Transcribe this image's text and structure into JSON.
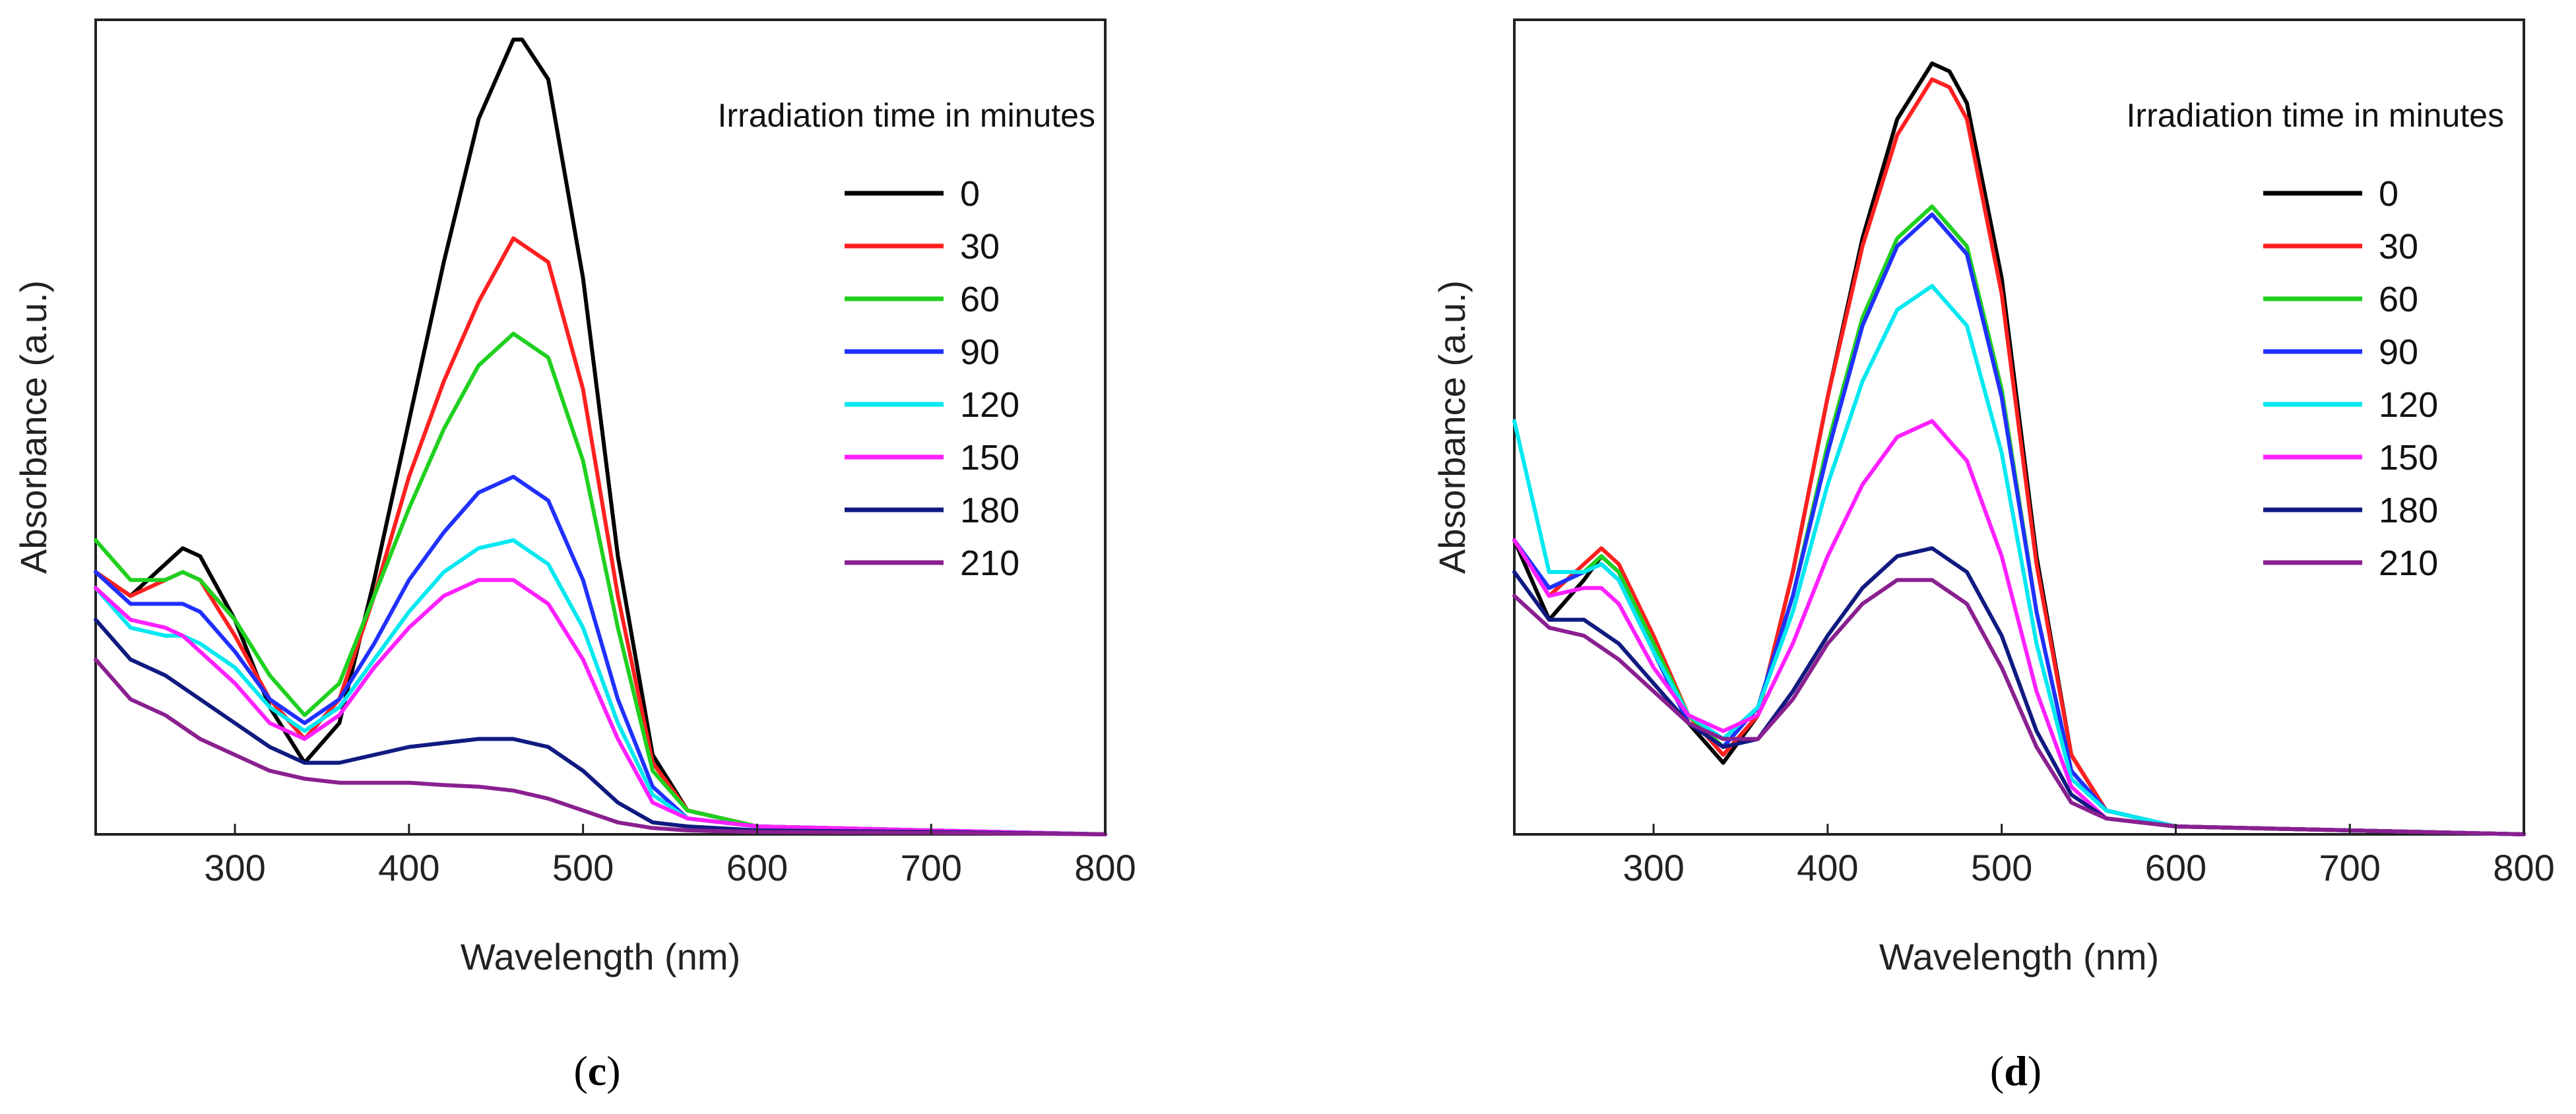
{
  "chart_data": [
    {
      "type": "line",
      "panel_label": "c",
      "xlabel": "Wavelength (nm)",
      "ylabel": "Absorbance (a.u.)",
      "xlim": [
        220,
        800
      ],
      "ylim": [
        0,
        1.0
      ],
      "x_ticks": [
        300,
        400,
        500,
        600,
        700,
        800
      ],
      "legend_title": "Irradiation time in minutes",
      "legend_position": "top-right",
      "series": [
        {
          "name": "0",
          "color": "#000000",
          "x": [
            220,
            240,
            260,
            270,
            280,
            300,
            320,
            340,
            360,
            380,
            400,
            420,
            440,
            460,
            465,
            480,
            500,
            520,
            540,
            560,
            600,
            700,
            800
          ],
          "y": [
            0.33,
            0.3,
            0.34,
            0.36,
            0.35,
            0.27,
            0.16,
            0.09,
            0.14,
            0.32,
            0.52,
            0.72,
            0.9,
            1.0,
            1.0,
            0.95,
            0.7,
            0.35,
            0.1,
            0.03,
            0.01,
            0.005,
            0.0
          ]
        },
        {
          "name": "30",
          "color": "#ff2020",
          "x": [
            220,
            240,
            260,
            270,
            280,
            300,
            320,
            340,
            360,
            380,
            400,
            420,
            440,
            460,
            480,
            500,
            520,
            540,
            560,
            600,
            700,
            800
          ],
          "y": [
            0.33,
            0.3,
            0.32,
            0.33,
            0.32,
            0.25,
            0.17,
            0.12,
            0.17,
            0.3,
            0.45,
            0.57,
            0.67,
            0.75,
            0.72,
            0.56,
            0.3,
            0.09,
            0.03,
            0.01,
            0.005,
            0.0
          ]
        },
        {
          "name": "60",
          "color": "#20d020",
          "x": [
            220,
            240,
            260,
            270,
            280,
            300,
            320,
            340,
            360,
            380,
            400,
            420,
            440,
            460,
            480,
            500,
            520,
            540,
            560,
            600,
            700,
            800
          ],
          "y": [
            0.37,
            0.32,
            0.32,
            0.33,
            0.32,
            0.27,
            0.2,
            0.15,
            0.19,
            0.3,
            0.41,
            0.51,
            0.59,
            0.63,
            0.6,
            0.47,
            0.26,
            0.08,
            0.03,
            0.01,
            0.005,
            0.0
          ]
        },
        {
          "name": "90",
          "color": "#2030ff",
          "x": [
            220,
            240,
            260,
            270,
            280,
            300,
            320,
            340,
            360,
            380,
            400,
            420,
            440,
            460,
            480,
            500,
            520,
            540,
            560,
            600,
            700,
            800
          ],
          "y": [
            0.33,
            0.29,
            0.29,
            0.29,
            0.28,
            0.23,
            0.17,
            0.14,
            0.17,
            0.24,
            0.32,
            0.38,
            0.43,
            0.45,
            0.42,
            0.32,
            0.17,
            0.06,
            0.02,
            0.01,
            0.005,
            0.0
          ]
        },
        {
          "name": "120",
          "color": "#00e8f0",
          "x": [
            220,
            240,
            260,
            270,
            280,
            300,
            320,
            340,
            360,
            380,
            400,
            420,
            440,
            460,
            480,
            500,
            520,
            540,
            560,
            600,
            700,
            800
          ],
          "y": [
            0.31,
            0.26,
            0.25,
            0.25,
            0.24,
            0.21,
            0.16,
            0.13,
            0.16,
            0.22,
            0.28,
            0.33,
            0.36,
            0.37,
            0.34,
            0.26,
            0.14,
            0.05,
            0.02,
            0.01,
            0.005,
            0.0
          ]
        },
        {
          "name": "150",
          "color": "#ff20ff",
          "x": [
            220,
            240,
            260,
            270,
            280,
            300,
            320,
            340,
            360,
            380,
            400,
            420,
            440,
            460,
            480,
            500,
            520,
            540,
            560,
            600,
            700,
            800
          ],
          "y": [
            0.31,
            0.27,
            0.26,
            0.25,
            0.23,
            0.19,
            0.14,
            0.12,
            0.15,
            0.21,
            0.26,
            0.3,
            0.32,
            0.32,
            0.29,
            0.22,
            0.12,
            0.04,
            0.02,
            0.01,
            0.005,
            0.0
          ]
        },
        {
          "name": "180",
          "color": "#101a80",
          "x": [
            220,
            240,
            260,
            280,
            300,
            320,
            340,
            360,
            380,
            400,
            420,
            440,
            460,
            480,
            500,
            520,
            540,
            560,
            600,
            700,
            800
          ],
          "y": [
            0.27,
            0.22,
            0.2,
            0.17,
            0.14,
            0.11,
            0.09,
            0.09,
            0.1,
            0.11,
            0.115,
            0.12,
            0.12,
            0.11,
            0.08,
            0.04,
            0.015,
            0.01,
            0.005,
            0.003,
            0.0
          ]
        },
        {
          "name": "210",
          "color": "#8a2090",
          "x": [
            220,
            240,
            260,
            280,
            300,
            320,
            340,
            360,
            380,
            400,
            420,
            440,
            460,
            480,
            500,
            520,
            540,
            560,
            600,
            700,
            800
          ],
          "y": [
            0.22,
            0.17,
            0.15,
            0.12,
            0.1,
            0.08,
            0.07,
            0.065,
            0.065,
            0.065,
            0.062,
            0.06,
            0.055,
            0.045,
            0.03,
            0.015,
            0.008,
            0.005,
            0.003,
            0.002,
            0.0
          ]
        }
      ]
    },
    {
      "type": "line",
      "panel_label": "d",
      "xlabel": "Wavelength (nm)",
      "ylabel": "Absorbance (a.u.)",
      "xlim": [
        220,
        800
      ],
      "ylim": [
        0,
        1.0
      ],
      "x_ticks": [
        300,
        400,
        500,
        600,
        700,
        800
      ],
      "legend_title": "Irradiation time in minutes",
      "legend_position": "top-right",
      "series": [
        {
          "name": "0",
          "color": "#000000",
          "x": [
            220,
            240,
            260,
            270,
            280,
            300,
            320,
            340,
            360,
            380,
            400,
            420,
            440,
            460,
            470,
            480,
            500,
            520,
            540,
            560,
            600,
            700,
            800
          ],
          "y": [
            0.37,
            0.27,
            0.32,
            0.35,
            0.33,
            0.24,
            0.14,
            0.09,
            0.15,
            0.33,
            0.55,
            0.75,
            0.9,
            0.97,
            0.96,
            0.92,
            0.7,
            0.35,
            0.1,
            0.03,
            0.01,
            0.005,
            0.0
          ]
        },
        {
          "name": "30",
          "color": "#ff2020",
          "x": [
            220,
            240,
            260,
            270,
            280,
            300,
            320,
            340,
            360,
            380,
            400,
            420,
            440,
            460,
            470,
            480,
            500,
            520,
            540,
            560,
            600,
            700,
            800
          ],
          "y": [
            0.37,
            0.3,
            0.34,
            0.36,
            0.34,
            0.25,
            0.15,
            0.1,
            0.15,
            0.33,
            0.55,
            0.74,
            0.88,
            0.95,
            0.94,
            0.9,
            0.68,
            0.34,
            0.1,
            0.03,
            0.01,
            0.005,
            0.0
          ]
        },
        {
          "name": "60",
          "color": "#20d020",
          "x": [
            220,
            240,
            260,
            270,
            280,
            300,
            320,
            340,
            360,
            380,
            400,
            420,
            440,
            460,
            480,
            500,
            520,
            540,
            560,
            600,
            700,
            800
          ],
          "y": [
            0.37,
            0.31,
            0.33,
            0.35,
            0.33,
            0.24,
            0.15,
            0.11,
            0.16,
            0.3,
            0.49,
            0.65,
            0.75,
            0.79,
            0.74,
            0.56,
            0.28,
            0.08,
            0.03,
            0.01,
            0.005,
            0.0
          ]
        },
        {
          "name": "90",
          "color": "#2030ff",
          "x": [
            220,
            240,
            260,
            270,
            280,
            300,
            320,
            340,
            360,
            380,
            400,
            420,
            440,
            460,
            480,
            500,
            520,
            540,
            560,
            600,
            700,
            800
          ],
          "y": [
            0.37,
            0.31,
            0.33,
            0.34,
            0.32,
            0.23,
            0.14,
            0.11,
            0.16,
            0.3,
            0.48,
            0.64,
            0.74,
            0.78,
            0.73,
            0.55,
            0.28,
            0.08,
            0.03,
            0.01,
            0.005,
            0.0
          ]
        },
        {
          "name": "120",
          "color": "#00e8f0",
          "x": [
            220,
            240,
            260,
            270,
            280,
            300,
            320,
            340,
            360,
            380,
            400,
            420,
            440,
            460,
            480,
            500,
            520,
            540,
            560,
            600,
            700,
            800
          ],
          "y": [
            0.52,
            0.33,
            0.33,
            0.34,
            0.32,
            0.23,
            0.15,
            0.12,
            0.16,
            0.28,
            0.44,
            0.57,
            0.66,
            0.69,
            0.64,
            0.48,
            0.24,
            0.07,
            0.03,
            0.01,
            0.005,
            0.0
          ]
        },
        {
          "name": "150",
          "color": "#ff20ff",
          "x": [
            220,
            240,
            260,
            270,
            280,
            300,
            320,
            340,
            360,
            380,
            400,
            420,
            440,
            460,
            480,
            500,
            520,
            540,
            560,
            600,
            700,
            800
          ],
          "y": [
            0.37,
            0.3,
            0.31,
            0.31,
            0.29,
            0.21,
            0.15,
            0.13,
            0.15,
            0.24,
            0.35,
            0.44,
            0.5,
            0.52,
            0.47,
            0.35,
            0.18,
            0.06,
            0.02,
            0.01,
            0.005,
            0.0
          ]
        },
        {
          "name": "180",
          "color": "#101a80",
          "x": [
            220,
            240,
            260,
            280,
            300,
            320,
            340,
            360,
            380,
            400,
            420,
            440,
            460,
            480,
            500,
            520,
            540,
            560,
            600,
            700,
            800
          ],
          "y": [
            0.33,
            0.27,
            0.27,
            0.24,
            0.19,
            0.14,
            0.11,
            0.12,
            0.18,
            0.25,
            0.31,
            0.35,
            0.36,
            0.33,
            0.25,
            0.13,
            0.05,
            0.02,
            0.01,
            0.005,
            0.0
          ]
        },
        {
          "name": "210",
          "color": "#8a2090",
          "x": [
            220,
            240,
            260,
            280,
            300,
            320,
            340,
            360,
            380,
            400,
            420,
            440,
            460,
            480,
            500,
            520,
            540,
            560,
            600,
            700,
            800
          ],
          "y": [
            0.3,
            0.26,
            0.25,
            0.22,
            0.18,
            0.14,
            0.12,
            0.12,
            0.17,
            0.24,
            0.29,
            0.32,
            0.32,
            0.29,
            0.21,
            0.11,
            0.04,
            0.02,
            0.01,
            0.005,
            0.0
          ]
        }
      ]
    }
  ]
}
